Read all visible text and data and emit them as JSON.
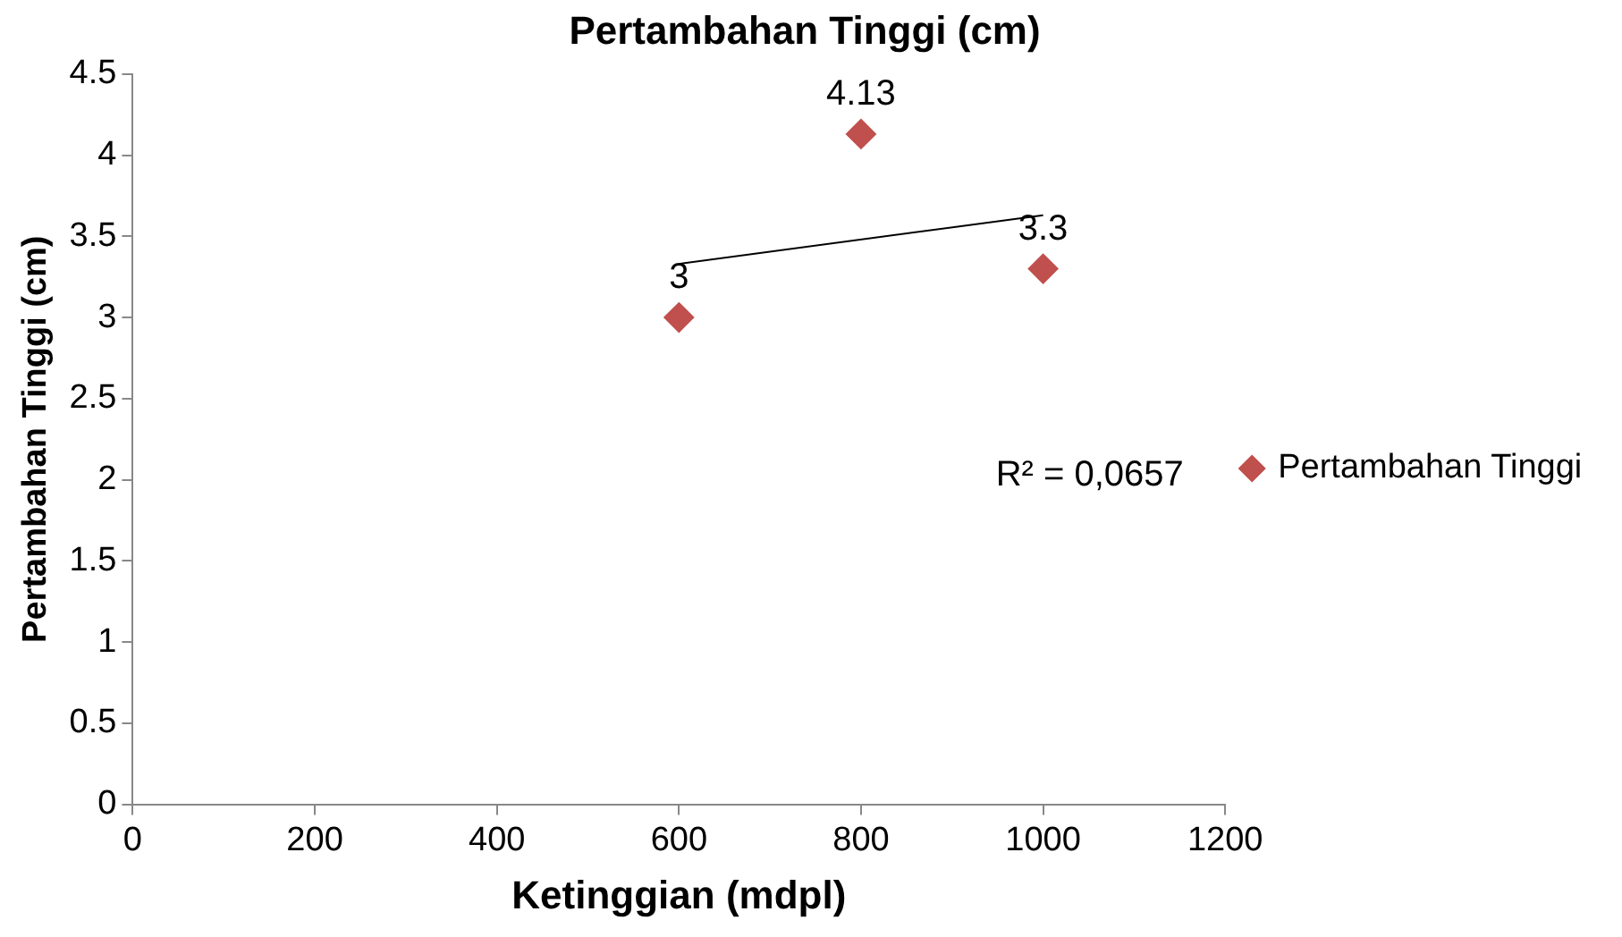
{
  "chart_data": {
    "type": "scatter",
    "title": "Pertambahan Tinggi (cm)",
    "xlabel": "Ketinggian (mdpl)",
    "ylabel": "Pertambahan Tinggi (cm)",
    "x": [
      600,
      800,
      1000
    ],
    "series": [
      {
        "name": "Pertambahan Tinggi",
        "color": "#c0504d",
        "values": [
          3,
          4.13,
          3.3
        ],
        "value_labels": [
          "3",
          "4.13",
          "3.3"
        ]
      },
      {
        "type": "line",
        "color": "#000000",
        "x": [
          600,
          1000
        ],
        "values": [
          3.33,
          3.63
        ],
        "marker": "none"
      }
    ],
    "marker": "diamond",
    "legend": "right",
    "grid": false,
    "xlim": [
      0,
      1200
    ],
    "xticks": [
      0,
      200,
      400,
      600,
      800,
      1000,
      1200
    ],
    "ylim": [
      0,
      4.5
    ],
    "yticks": [
      0,
      0.5,
      1,
      1.5,
      2,
      2.5,
      3,
      3.5,
      4,
      4.5
    ],
    "annotations": [
      "R² = 0,0657"
    ]
  }
}
